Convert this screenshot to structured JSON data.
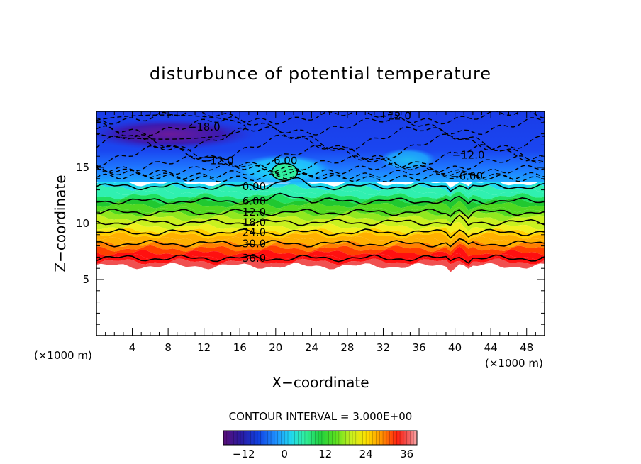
{
  "chart_data": {
    "type": "heatmap",
    "title": "disturbunce of potential temperature",
    "xlabel": "X−coordinate",
    "ylabel": "Z−coordinate",
    "x_unit_left": "(×1000 m)",
    "x_unit_right": "(×1000 m)",
    "xlim": [
      0,
      50
    ],
    "ylim": [
      0,
      20
    ],
    "x_ticks": [
      4,
      8,
      12,
      16,
      20,
      24,
      28,
      32,
      36,
      40,
      44,
      48
    ],
    "y_ticks": [
      5,
      10,
      15
    ],
    "contour_interval_text": "CONTOUR INTERVAL = 3.000E+00",
    "colorbar": {
      "range": [
        -18,
        39
      ],
      "ticks": [
        -12,
        0,
        12,
        24,
        36
      ],
      "tick_labels": [
        "−12",
        "0",
        "12",
        "24",
        "36"
      ]
    },
    "positive_contours": [
      {
        "level": 0,
        "label": "0.00",
        "z": 13.3,
        "label_x": 17.6
      },
      {
        "level": 6,
        "label": "6.00",
        "z": 12.0,
        "label_x": 17.6
      },
      {
        "level": 12,
        "label": "12.0",
        "z": 11.0,
        "label_x": 17.6
      },
      {
        "level": 18,
        "label": "18.0",
        "z": 10.1,
        "label_x": 17.6
      },
      {
        "level": 24,
        "label": "24.0",
        "z": 9.2,
        "label_x": 17.6
      },
      {
        "level": 30,
        "label": "30.0",
        "z": 8.2,
        "label_x": 17.6
      },
      {
        "level": 36,
        "label": "36.0",
        "z": 6.9,
        "label_x": 17.6
      }
    ],
    "negative_labels": [
      {
        "label": "−18.0",
        "x": 12.0,
        "z": 18.6
      },
      {
        "label": "−12.0",
        "x": 13.5,
        "z": 15.6
      },
      {
        "label": "−12.0",
        "x": 33.3,
        "z": 19.6
      },
      {
        "label": "−12.0",
        "x": 41.5,
        "z": 16.1
      },
      {
        "label": "−6.00",
        "x": 41.3,
        "z": 14.2
      },
      {
        "label": "6.00",
        "x": 21.1,
        "z": 15.6
      }
    ],
    "warm_blob": {
      "x": 21.0,
      "z": 14.6,
      "value": 6.0
    },
    "cold_core": {
      "x": 7.5,
      "z": 18.6,
      "value": -18.0
    },
    "lower_boundary_z": 6.2,
    "grid": false
  }
}
